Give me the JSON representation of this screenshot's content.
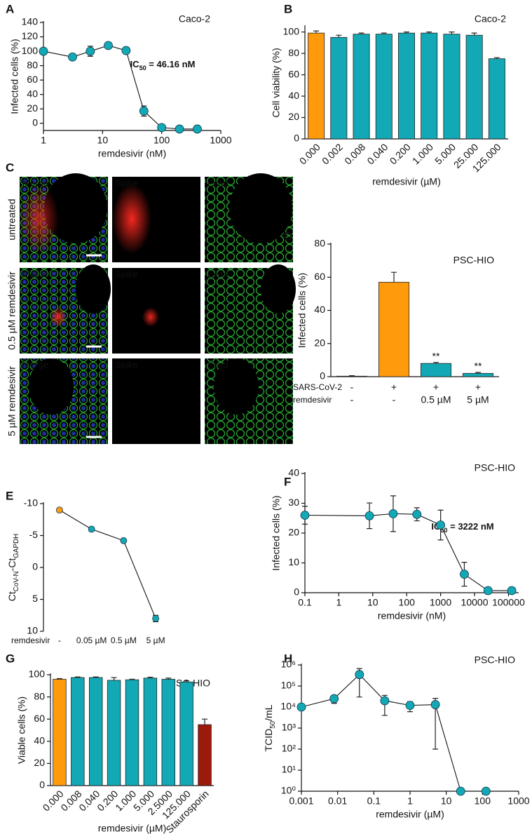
{
  "chart_data": [
    {
      "panel": "A",
      "type": "line",
      "title": "Caco-2",
      "note_parts": [
        "IC",
        "50",
        " = 46.16 nM"
      ],
      "xlabel": "remdesivir (nM)",
      "ylabel": "Infected cells (%)",
      "x": [
        1,
        3.1,
        6.2,
        12.5,
        25,
        50,
        100,
        200,
        400
      ],
      "values": [
        100,
        92,
        100,
        108,
        101,
        17,
        -6,
        -8,
        -8
      ],
      "errors": [
        0,
        0,
        7,
        4,
        3,
        7,
        0,
        0,
        0
      ],
      "color": "#12a8b5",
      "xlog": true,
      "xlim": [
        1,
        1000
      ],
      "xticks": [
        1,
        10,
        100,
        1000
      ],
      "ylim": [
        -10,
        140
      ],
      "yticks": [
        0,
        20,
        40,
        60,
        80,
        100,
        120,
        140
      ]
    },
    {
      "panel": "B",
      "type": "bar",
      "title": "Caco-2",
      "xlabel": "remdesivir (µM)",
      "ylabel": "Cell viability (%)",
      "categories": [
        "0.000",
        "0.002",
        "0.008",
        "0.040",
        "0.200",
        "1.000",
        "5.000",
        "25.000",
        "125.000"
      ],
      "values": [
        99,
        95,
        98,
        98,
        99,
        99,
        98,
        97,
        75
      ],
      "errors": [
        2,
        2,
        1,
        1,
        1,
        1,
        2,
        2,
        1
      ],
      "colors": [
        "#ff9a0d",
        "#12a8b5",
        "#12a8b5",
        "#12a8b5",
        "#12a8b5",
        "#12a8b5",
        "#12a8b5",
        "#12a8b5",
        "#12a8b5"
      ],
      "ylim": [
        0,
        105
      ],
      "yticks": [
        0,
        20,
        40,
        60,
        80,
        100
      ],
      "rotate_labels": true
    },
    {
      "panel": "D",
      "type": "bar",
      "title": "PSC-HIO",
      "ylabel": "Infected cells (%)",
      "categories": [
        null,
        null,
        null,
        null
      ],
      "values": [
        0.3,
        57,
        8,
        2
      ],
      "errors": [
        0.3,
        6,
        0.6,
        0.6
      ],
      "sig_labels": [
        null,
        null,
        "**",
        "**"
      ],
      "colors": [
        "#12a8b5",
        "#ff9a0d",
        "#12a8b5",
        "#12a8b5"
      ],
      "conditions": [
        {
          "label": "SARS-CoV-2",
          "values": [
            "-",
            "+",
            "+",
            "+"
          ]
        },
        {
          "label": "remdesivir",
          "values": [
            "-",
            "-",
            "0.5 µM",
            "5 µM"
          ]
        }
      ],
      "ylim": [
        0,
        80
      ],
      "yticks": [
        0,
        20,
        40,
        60,
        80
      ]
    },
    {
      "panel": "E",
      "type": "line",
      "ylabel_parts": [
        "Ct",
        "CoV-N",
        "-Ct",
        "GAPDH"
      ],
      "row_label": "remdesivir",
      "categories": [
        "-",
        "0.05 µM",
        "0.5 µM",
        "5 µM"
      ],
      "values": [
        -9,
        -6,
        -4.2,
        8
      ],
      "errors": [
        0,
        0,
        0,
        0.5
      ],
      "colors": [
        "#ff9a0d",
        "#12a8b5",
        "#12a8b5",
        "#12a8b5"
      ],
      "ylim": [
        -10,
        10
      ],
      "y_inverted": true,
      "yticks": [
        -10,
        -5,
        0,
        5,
        10
      ]
    },
    {
      "panel": "F",
      "type": "line",
      "title": "PSC-HIO",
      "note_parts": [
        "IC",
        "50",
        " = 3222 nM"
      ],
      "xlabel": "remdesivir (nM)",
      "ylabel": "Infected cells (%)",
      "x": [
        0.1,
        8,
        40,
        200,
        1000,
        5000,
        25000,
        125000
      ],
      "values": [
        26,
        25.8,
        26.5,
        26.3,
        22.7,
        6.2,
        0.7,
        0.7
      ],
      "errors": [
        3,
        4.3,
        6,
        2.2,
        5,
        4,
        0.5,
        0.5
      ],
      "color": "#12a8b5",
      "xlog": true,
      "xlim": [
        0.1,
        200000
      ],
      "xticks": [
        0.1,
        1,
        10,
        100,
        1000,
        10000,
        100000
      ],
      "ylim": [
        0,
        40
      ],
      "yticks": [
        0,
        10,
        20,
        30,
        40
      ]
    },
    {
      "panel": "G",
      "type": "bar",
      "title": "PSC-HIO",
      "xlabel": "remdesivir (µM)",
      "ylabel": "Viable cells (%)",
      "categories": [
        "0.000",
        "0.008",
        "0.040",
        "0.200",
        "1.000",
        "5.000",
        "2.5000",
        "125.000",
        "Staurosporin"
      ],
      "values": [
        96,
        97.5,
        97.5,
        95,
        95.5,
        97,
        96,
        93.5,
        55
      ],
      "errors": [
        0.5,
        0.5,
        0.5,
        2.5,
        0.5,
        0.8,
        1,
        1,
        5
      ],
      "colors": [
        "#ff9a0d",
        "#12a8b5",
        "#12a8b5",
        "#12a8b5",
        "#12a8b5",
        "#12a8b5",
        "#12a8b5",
        "#12a8b5",
        "#9b1a0a"
      ],
      "ylim": [
        0,
        100
      ],
      "yticks": [
        0,
        20,
        40,
        60,
        80,
        100
      ],
      "rotate_labels": true
    },
    {
      "panel": "H",
      "type": "line",
      "title": "PSC-HIO",
      "xlabel": "remdesivir (µM)",
      "ylabel_parts": [
        "TCID",
        "50",
        "/mL"
      ],
      "x": [
        0.001,
        0.008,
        0.04,
        0.2,
        1,
        5,
        25,
        125
      ],
      "values": [
        10000,
        25000,
        350000,
        20000,
        12000,
        13000,
        1,
        1
      ],
      "errors": [
        3000,
        10000,
        320000,
        16000,
        6000,
        12900,
        0,
        0
      ],
      "color": "#12a8b5",
      "xlog": true,
      "xlim": [
        0.001,
        1000
      ],
      "xticks": [
        0.001,
        0.01,
        0.1,
        1,
        10,
        100,
        1000
      ],
      "ylog": true,
      "ylim": [
        1,
        1000000
      ],
      "yticks": [
        {
          "value": 1,
          "label": "10⁰"
        },
        {
          "value": 10,
          "label": "10¹"
        },
        {
          "value": 100,
          "label": "10²"
        },
        {
          "value": 1000,
          "label": "10³"
        },
        {
          "value": 10000,
          "label": "10⁴"
        },
        {
          "value": 100000,
          "label": "10⁵"
        },
        {
          "value": 1000000,
          "label": "10⁶"
        }
      ]
    }
  ],
  "micrographs": {
    "panel": "C",
    "columns": [
      "Merge",
      "Spike",
      "Ecad"
    ],
    "rows": [
      "untreated",
      "0.5 µM remdesivir",
      "5 µM remdesivir"
    ]
  }
}
